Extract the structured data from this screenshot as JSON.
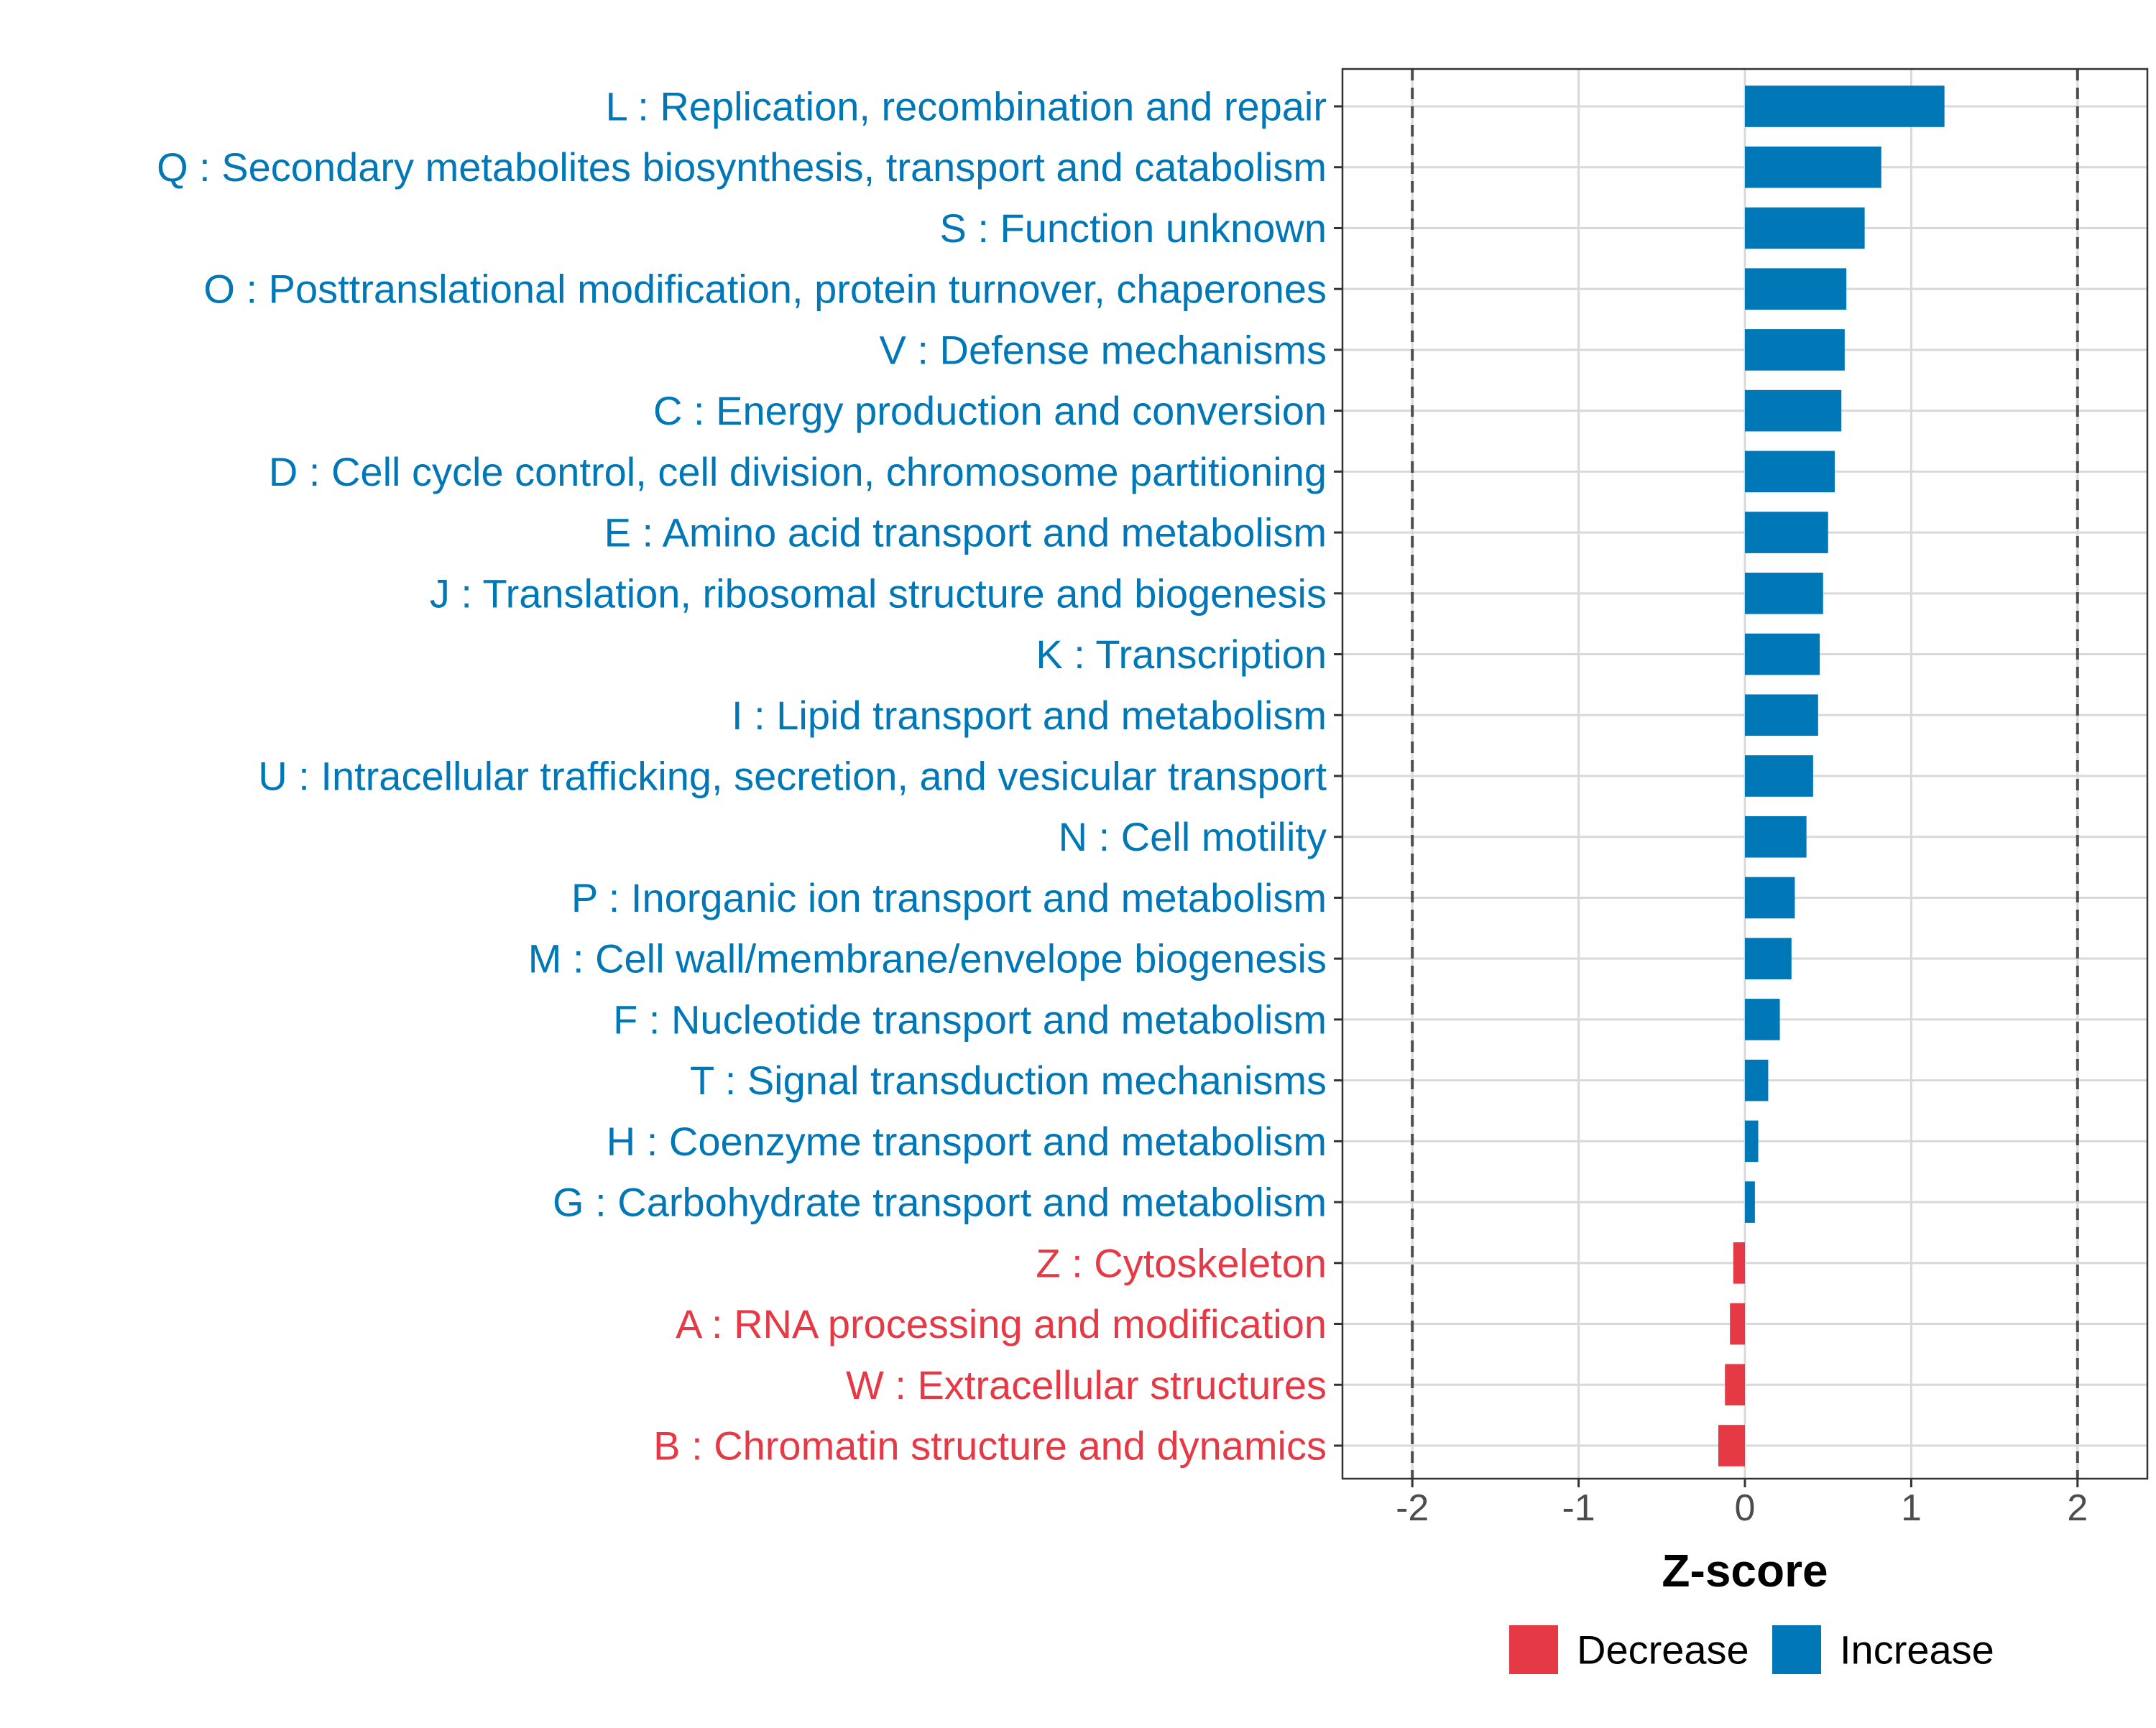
{
  "chart_data": {
    "type": "bar",
    "orientation": "horizontal",
    "xlabel": "Z-score",
    "ylabel": "",
    "xlim": [
      -2.42,
      2.42
    ],
    "xticks": [
      -2,
      -1,
      0,
      1,
      2
    ],
    "xtick_labels": [
      "-2",
      "-1",
      "0",
      "1",
      "2"
    ],
    "reference_lines": [
      -2,
      2
    ],
    "grid": true,
    "categories": [
      "L : Replication, recombination and repair",
      "Q : Secondary metabolites biosynthesis, transport and catabolism",
      "S : Function unknown",
      "O : Posttranslational modification, protein turnover, chaperones",
      "V : Defense mechanisms",
      "C : Energy production and conversion",
      "D : Cell cycle control, cell division, chromosome partitioning",
      "E : Amino acid transport and metabolism",
      "J : Translation, ribosomal structure and biogenesis",
      "K : Transcription",
      "I : Lipid transport and metabolism",
      "U : Intracellular trafficking, secretion, and vesicular transport",
      "N : Cell motility",
      "P : Inorganic ion transport and metabolism",
      "M : Cell wall/membrane/envelope biogenesis",
      "F : Nucleotide transport and metabolism",
      "T : Signal transduction mechanisms",
      "H : Coenzyme transport and metabolism",
      "G : Carbohydrate transport and metabolism",
      "Z : Cytoskeleton",
      "A : RNA processing and modification",
      "W : Extracellular structures",
      "B : Chromatin structure and dynamics"
    ],
    "values": [
      1.2,
      0.82,
      0.72,
      0.61,
      0.6,
      0.58,
      0.54,
      0.5,
      0.47,
      0.45,
      0.44,
      0.41,
      0.37,
      0.3,
      0.28,
      0.21,
      0.14,
      0.08,
      0.06,
      -0.07,
      -0.09,
      -0.12,
      -0.16
    ],
    "groups": [
      "Increase",
      "Increase",
      "Increase",
      "Increase",
      "Increase",
      "Increase",
      "Increase",
      "Increase",
      "Increase",
      "Increase",
      "Increase",
      "Increase",
      "Increase",
      "Increase",
      "Increase",
      "Increase",
      "Increase",
      "Increase",
      "Increase",
      "Decrease",
      "Decrease",
      "Decrease",
      "Decrease"
    ],
    "legend": {
      "position": "bottom",
      "entries": [
        {
          "label": "Decrease",
          "color": "#e63946"
        },
        {
          "label": "Increase",
          "color": "#0077b6"
        }
      ]
    }
  },
  "colors": {
    "increase": "#0077b6",
    "decrease": "#e63946",
    "grid": "#d9d9d9",
    "reference_line": "#4d4d4d"
  }
}
